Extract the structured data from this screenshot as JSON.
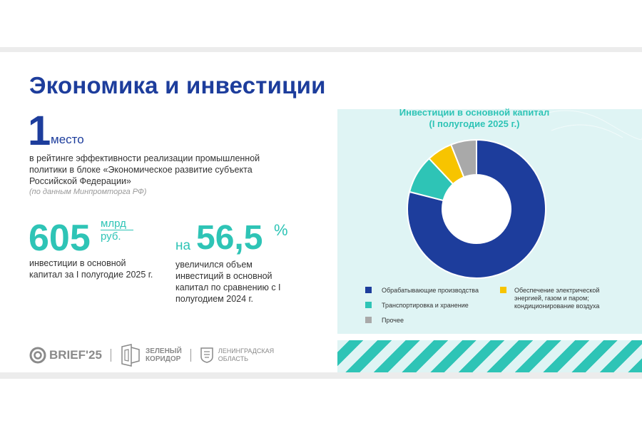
{
  "title": "Экономика и инвестиции",
  "rank": {
    "number": "1",
    "word": "место",
    "description": "в рейтинге эффективности реализации промышленной политики в блоке «Экономическое развитие субъекта Российской Федерации»",
    "source": "(по данным Минпромторга РФ)"
  },
  "investment": {
    "value": "605",
    "unit_line1": "млрд",
    "unit_line2": "руб.",
    "description": "инвестиции в основной капитал за I полугодие 2025 г."
  },
  "growth": {
    "prefix": "на",
    "value": "56,5",
    "unit": "%",
    "description": "увеличился объем инвестиций в основной капитал по сравнению с I полугодием 2024 г."
  },
  "footer": {
    "brief": "BRIEF'25",
    "green_corridor_line1": "ЗЕЛЕНЫЙ",
    "green_corridor_line2": "КОРИДОР",
    "region_line1": "ЛЕНИНГРАДСКАЯ",
    "region_line2": "ОБЛАСТЬ"
  },
  "colors": {
    "primary": "#1d3d9c",
    "accent": "#2ec4b6",
    "panel": "#dff4f4",
    "yellow": "#f7c400",
    "gray": "#a9a9a9"
  },
  "chart_data": {
    "type": "pie",
    "variant": "donut",
    "title_line1": "Инвестиции в основной капитал",
    "title_line2": "(I полугодие 2025 г.)",
    "categories": [
      "Обрабатывающие производства",
      "Транспортировка и хранение",
      "Обеспечение электрической энергией, газом и паром; кондиционирование воздуха",
      "Прочее"
    ],
    "values": [
      79,
      9,
      6,
      6
    ],
    "colors": [
      "#1d3d9c",
      "#2ec4b6",
      "#f7c400",
      "#a9a9a9"
    ],
    "legend_labels": {
      "manufacturing": "Обрабатывающие производства",
      "transport": "Транспортировка и хранение",
      "energy": "Обеспечение электрической энергией, газом и паром; кондиционирование воздуха",
      "other": "Прочее"
    }
  }
}
